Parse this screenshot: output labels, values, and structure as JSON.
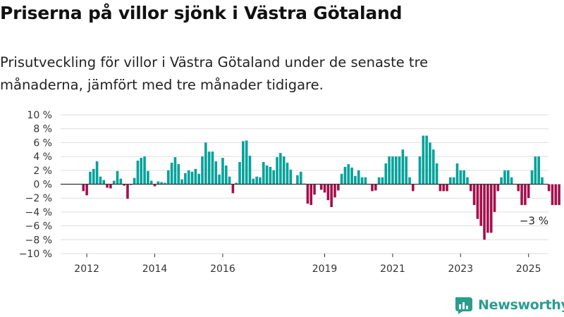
{
  "title": "Priserna på villor sjönk i Västra Götaland",
  "subtitle": "Prisutveckling för villor i Västra Götaland under de senaste tre månaderna, jämfört med tre månader tidigare.",
  "brand": "Newsworthy",
  "colors": {
    "positive": "#00a29a",
    "negative": "#a50f4d",
    "grid": "#dddddd",
    "axis": "#333333",
    "brand": "#2a9d8f"
  },
  "chart_data": {
    "type": "bar",
    "x_start": "2011-12",
    "frequency": "monthly",
    "ylim": [
      -10,
      10
    ],
    "yticks": [
      10,
      8,
      6,
      4,
      2,
      0,
      -2,
      -4,
      -6,
      -8,
      -10
    ],
    "ytick_labels": [
      "10 %",
      "8 %",
      "6 %",
      "4 %",
      "2 %",
      "0 %",
      "−2 %",
      "−4 %",
      "−6 %",
      "−8 %",
      "−10 %"
    ],
    "xtick_labels": [
      "2012",
      "2014",
      "2016",
      "2019",
      "2021",
      "2023",
      "2025"
    ],
    "xtick_indices": [
      1,
      21,
      41,
      71,
      91,
      111,
      131
    ],
    "annotation": "−3 %",
    "annotation_index": 130,
    "values": [
      -1,
      -1.6,
      1.8,
      2.2,
      3.3,
      1.1,
      0.6,
      -0.5,
      -0.6,
      0.5,
      1.9,
      0.8,
      -0.2,
      -2.1,
      -0.1,
      0.9,
      3.4,
      3.8,
      4,
      1.9,
      0.5,
      -0.3,
      0.4,
      0.3,
      0.2,
      2,
      3.1,
      3.9,
      2.9,
      0.7,
      1.6,
      2,
      1.8,
      2.2,
      1.5,
      4,
      6,
      4.7,
      4.7,
      3.3,
      1.4,
      3.8,
      2.7,
      1.1,
      -1.3,
      0.2,
      3.2,
      6.2,
      6.3,
      4.1,
      0.8,
      1.1,
      1,
      3.2,
      2.7,
      2.5,
      2,
      3.9,
      4.5,
      4,
      3.1,
      2.1,
      0,
      1.3,
      1.8,
      0.1,
      -2.8,
      -3,
      -1.5,
      0,
      -0.8,
      -1.2,
      -2.3,
      -3.3,
      -1.9,
      -0.9,
      1.5,
      2.5,
      2.9,
      2.4,
      1.2,
      2,
      1,
      1,
      0,
      -1,
      -0.9,
      1,
      1,
      3,
      4,
      4,
      4,
      4,
      5,
      4,
      1,
      -1,
      0,
      4,
      7,
      7,
      6,
      5,
      3,
      -1,
      -1,
      -1,
      1,
      1,
      3,
      2,
      2,
      1,
      -1,
      -3,
      -5,
      -6,
      -8,
      -7,
      -7,
      -4,
      -1,
      1,
      2,
      2,
      1,
      0,
      -1,
      -3,
      -3,
      -2,
      2,
      4,
      4,
      1,
      0,
      -1,
      -3,
      -3,
      -3
    ]
  }
}
